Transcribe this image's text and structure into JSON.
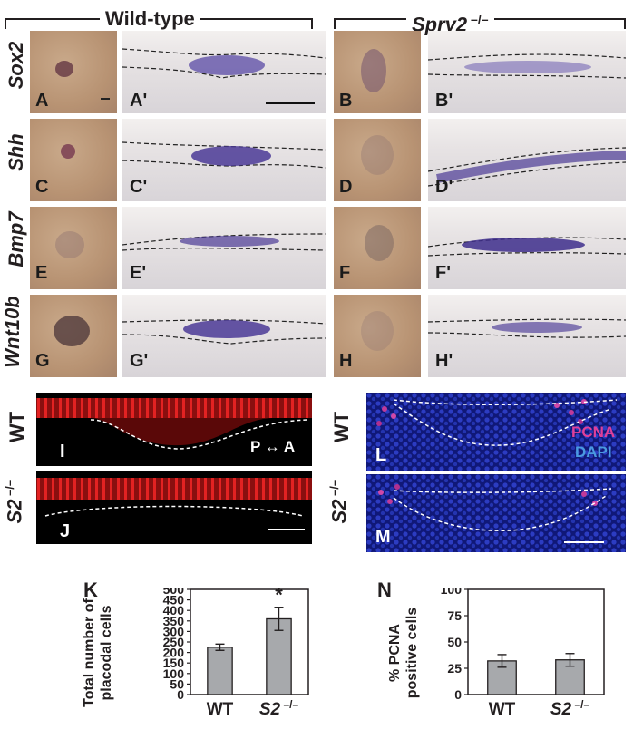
{
  "headers": {
    "wildtype": "Wild-type",
    "mutant_prefix": "Spry2",
    "mutant_suffix": " –/–"
  },
  "genes": [
    "Sox2",
    "Shh",
    "Bmp7",
    "Wnt10b"
  ],
  "panel_labels": {
    "rows": [
      [
        "A",
        "A'",
        "B",
        "B'"
      ],
      [
        "C",
        "C'",
        "D",
        "D'"
      ],
      [
        "E",
        "E'",
        "F",
        "F'"
      ],
      [
        "G",
        "G'",
        "H",
        "H'"
      ]
    ],
    "I": "I",
    "J": "J",
    "L": "L",
    "M": "M",
    "K": "K",
    "N": "N"
  },
  "fluor": {
    "wt": "WT",
    "s2": "S2",
    "s2_suffix": " –/–",
    "axis": "P ↔ A",
    "pcna": "PCNA",
    "dapi": "DAPI"
  },
  "colors": {
    "pcna": "#e0409a",
    "dapi": "#4a9ae0",
    "stain": "#4b3a96",
    "red": "#d81e1e"
  },
  "chart_data": [
    {
      "type": "bar",
      "panel": "K",
      "ylabel_line1": "Total number of",
      "ylabel_line2": "placodal cells",
      "categories": [
        "WT",
        "S2 –/–"
      ],
      "category_main": [
        "WT",
        "S2"
      ],
      "category_suffix": [
        "",
        " –/–"
      ],
      "values": [
        225,
        360
      ],
      "errors": [
        15,
        55
      ],
      "ylim": [
        0,
        500
      ],
      "yticks": [
        "0",
        "50",
        "100",
        "150",
        "200",
        "250",
        "300",
        "350",
        "400",
        "450",
        "500"
      ],
      "significance": "*",
      "grid": false
    },
    {
      "type": "bar",
      "panel": "N",
      "ylabel_line1": "% PCNA",
      "ylabel_line2": "positive cells",
      "categories": [
        "WT",
        "S2 –/–"
      ],
      "category_main": [
        "WT",
        "S2"
      ],
      "category_suffix": [
        "",
        " –/–"
      ],
      "values": [
        32,
        33
      ],
      "errors": [
        6,
        6
      ],
      "ylim": [
        0,
        100
      ],
      "yticks": [
        "0",
        "25",
        "50",
        "75",
        "100"
      ],
      "grid": false
    }
  ]
}
